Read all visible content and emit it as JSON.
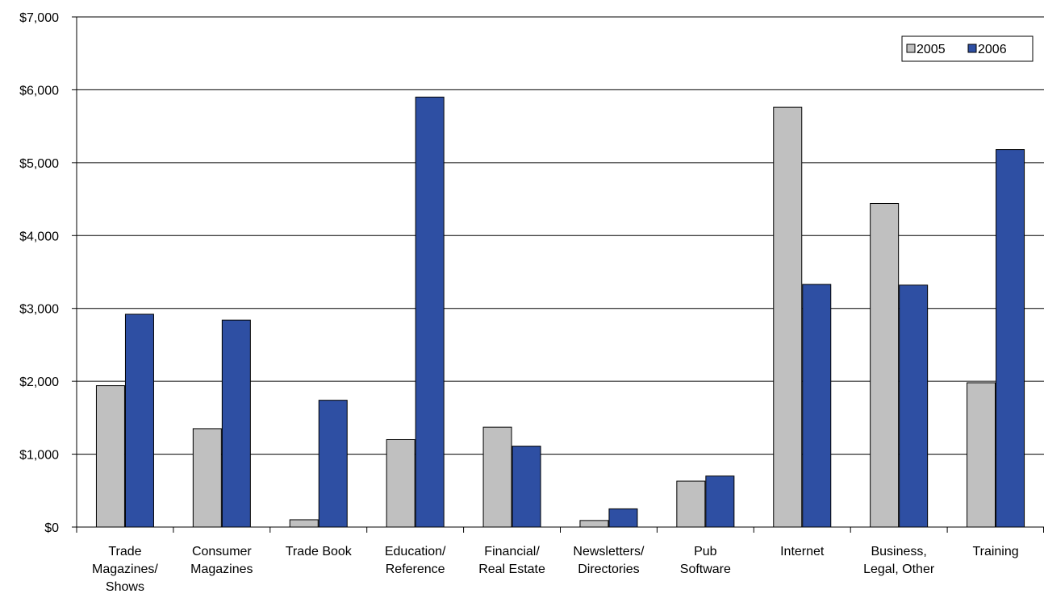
{
  "chart_data": {
    "type": "bar",
    "categories": [
      [
        "Trade",
        "Magazines/",
        "Shows"
      ],
      [
        "Consumer",
        "Magazines"
      ],
      [
        "Trade Book"
      ],
      [
        "Education/",
        "Reference"
      ],
      [
        "Financial/",
        "Real Estate"
      ],
      [
        "Newsletters/",
        "Directories"
      ],
      [
        "Pub",
        "Software"
      ],
      [
        "Internet"
      ],
      [
        "Business,",
        "Legal, Other"
      ],
      [
        "Training"
      ]
    ],
    "series": [
      {
        "name": "2005",
        "color": "#c0c0c0",
        "values": [
          1940,
          1350,
          100,
          1200,
          1370,
          90,
          630,
          5760,
          4440,
          1980
        ]
      },
      {
        "name": "2006",
        "color": "#2e4fa3",
        "values": [
          2920,
          2840,
          1740,
          5900,
          1110,
          250,
          700,
          3330,
          3320,
          5180
        ]
      }
    ],
    "y_ticks": [
      "$0",
      "$1,000",
      "$2,000",
      "$3,000",
      "$4,000",
      "$5,000",
      "$6,000",
      "$7,000"
    ],
    "ylim": [
      0,
      7000
    ],
    "grid": true,
    "legend_position": "top-right",
    "title": "",
    "xlabel": "",
    "ylabel": ""
  }
}
